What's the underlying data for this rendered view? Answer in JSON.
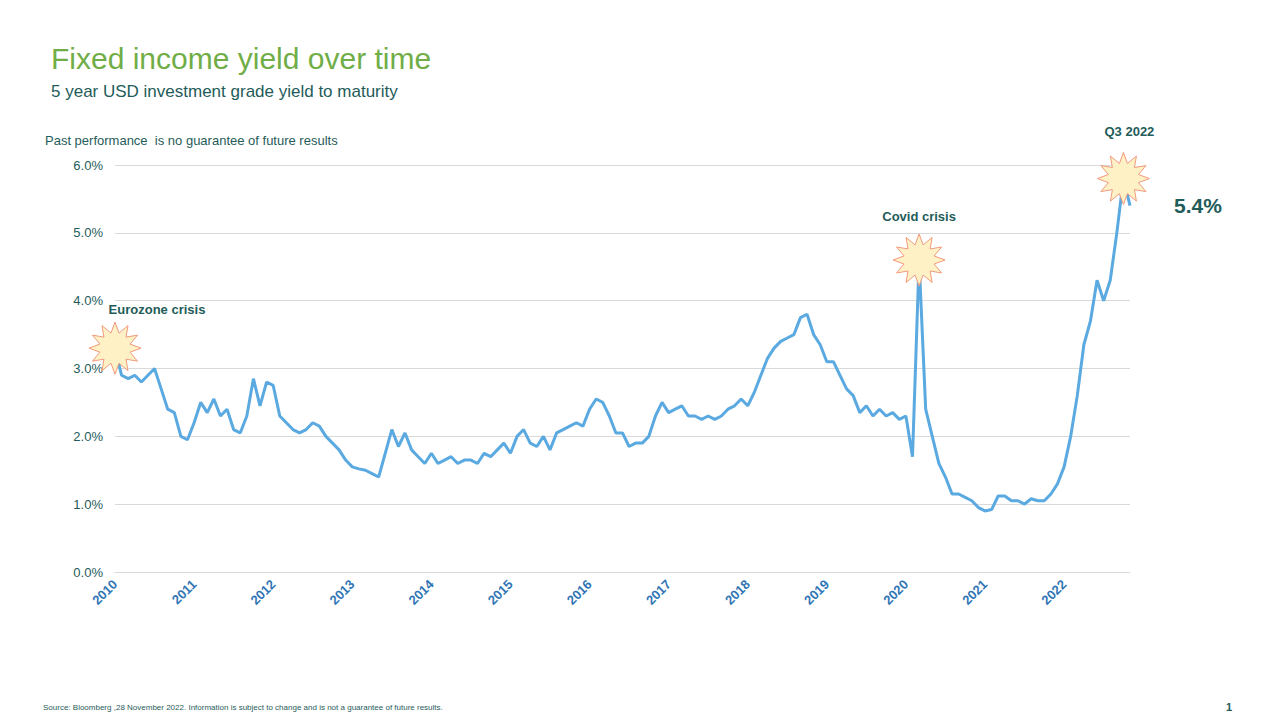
{
  "chart_data": {
    "type": "line",
    "title": "Fixed income yield over time",
    "subtitle": "5 year USD investment grade yield to maturity",
    "note": "Past performance  is no guarantee of future results",
    "source": "Source: Bloomberg ,28 November 2022. Information is subject to change and is not a guarantee of future results.",
    "page": "1",
    "color": "#5aa9e0",
    "grid": true,
    "ylim": [
      0,
      6
    ],
    "yticks": [
      {
        "value": 0,
        "label": "0.0%"
      },
      {
        "value": 1,
        "label": "1.0%"
      },
      {
        "value": 2,
        "label": "2.0%"
      },
      {
        "value": 3,
        "label": "3.0%"
      },
      {
        "value": 4,
        "label": "4.0%"
      },
      {
        "value": 5,
        "label": "5.0%"
      },
      {
        "value": 6,
        "label": "6.0%"
      }
    ],
    "categories": [
      "2010",
      null,
      null,
      null,
      null,
      null,
      null,
      null,
      null,
      null,
      null,
      null,
      "2011",
      null,
      null,
      null,
      null,
      null,
      null,
      null,
      null,
      null,
      null,
      null,
      "2012",
      null,
      null,
      null,
      null,
      null,
      null,
      null,
      null,
      null,
      null,
      null,
      "2013",
      null,
      null,
      null,
      null,
      null,
      null,
      null,
      null,
      null,
      null,
      null,
      "2014",
      null,
      null,
      null,
      null,
      null,
      null,
      null,
      null,
      null,
      null,
      null,
      "2015",
      null,
      null,
      null,
      null,
      null,
      null,
      null,
      null,
      null,
      null,
      null,
      "2016",
      null,
      null,
      null,
      null,
      null,
      null,
      null,
      null,
      null,
      null,
      null,
      "2017",
      null,
      null,
      null,
      null,
      null,
      null,
      null,
      null,
      null,
      null,
      null,
      "2018",
      null,
      null,
      null,
      null,
      null,
      null,
      null,
      null,
      null,
      null,
      null,
      "2019",
      null,
      null,
      null,
      null,
      null,
      null,
      null,
      null,
      null,
      null,
      null,
      "2020",
      null,
      null,
      null,
      null,
      null,
      null,
      null,
      null,
      null,
      null,
      null,
      "2021",
      null,
      null,
      null,
      null,
      null,
      null,
      null,
      null,
      null,
      null,
      null,
      "2022",
      null,
      null,
      null,
      null,
      null,
      null,
      null,
      null,
      null,
      null
    ],
    "values": [
      3.3,
      2.9,
      2.85,
      2.9,
      2.8,
      2.9,
      3.0,
      2.7,
      2.4,
      2.35,
      2.0,
      1.95,
      2.2,
      2.5,
      2.35,
      2.55,
      2.3,
      2.4,
      2.1,
      2.05,
      2.3,
      2.85,
      2.45,
      2.8,
      2.75,
      2.3,
      2.2,
      2.1,
      2.05,
      2.1,
      2.2,
      2.15,
      2.0,
      1.9,
      1.8,
      1.65,
      1.55,
      1.52,
      1.5,
      1.45,
      1.4,
      1.75,
      2.1,
      1.85,
      2.05,
      1.8,
      1.7,
      1.6,
      1.75,
      1.6,
      1.65,
      1.7,
      1.6,
      1.65,
      1.65,
      1.6,
      1.75,
      1.7,
      1.8,
      1.9,
      1.75,
      2.0,
      2.1,
      1.9,
      1.85,
      2.0,
      1.8,
      2.05,
      2.1,
      2.15,
      2.2,
      2.15,
      2.4,
      2.55,
      2.5,
      2.3,
      2.05,
      2.05,
      1.85,
      1.9,
      1.9,
      2.0,
      2.3,
      2.5,
      2.35,
      2.4,
      2.45,
      2.3,
      2.3,
      2.25,
      2.3,
      2.25,
      2.3,
      2.4,
      2.45,
      2.55,
      2.45,
      2.65,
      2.9,
      3.15,
      3.3,
      3.4,
      3.45,
      3.5,
      3.75,
      3.8,
      3.5,
      3.35,
      3.1,
      3.1,
      2.9,
      2.7,
      2.6,
      2.35,
      2.45,
      2.3,
      2.4,
      2.3,
      2.35,
      2.25,
      2.3,
      1.7,
      4.6,
      2.4,
      2.0,
      1.6,
      1.4,
      1.15,
      1.15,
      1.1,
      1.05,
      0.95,
      0.9,
      0.92,
      1.12,
      1.12,
      1.05,
      1.05,
      1.0,
      1.08,
      1.05,
      1.05,
      1.15,
      1.3,
      1.55,
      2.0,
      2.6,
      3.35,
      3.7,
      4.3,
      4.0,
      4.3,
      5.0,
      5.8,
      5.4
    ],
    "annotations": [
      {
        "text": "Eurozone crisis",
        "index": 0
      },
      {
        "text": "Covid crisis",
        "index": 122
      },
      {
        "text": "Q3 2022",
        "index": 153
      },
      {
        "text": "5.4%",
        "index": 154
      }
    ]
  }
}
